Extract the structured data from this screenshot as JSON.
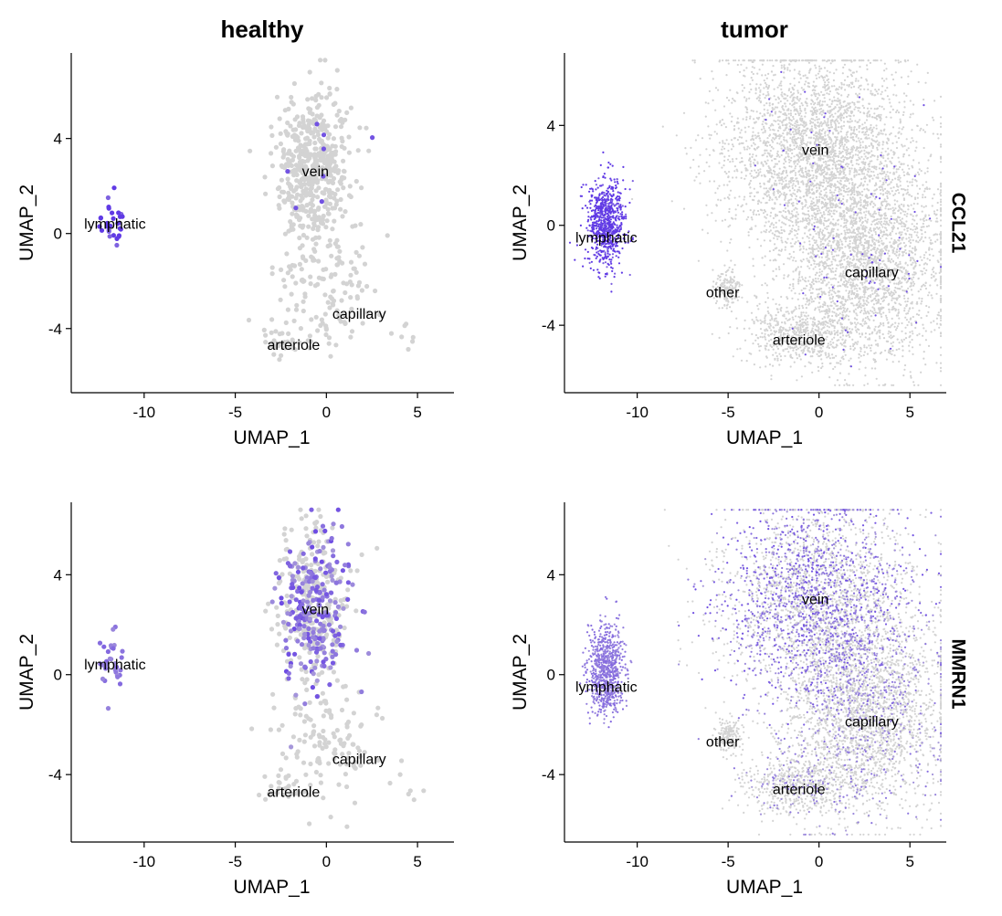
{
  "figure": {
    "column_titles": [
      "healthy",
      "tumor"
    ],
    "row_labels": [
      "CCL21",
      "MMRN1"
    ]
  },
  "colors": {
    "background": "#ffffff",
    "low_expression": "#d3d3d3",
    "high_expression": "#5a32e6",
    "axis": "#000000"
  },
  "chart_data": [
    {
      "type": "scatter",
      "panel": "healthy-CCL21",
      "column": "healthy",
      "gene": "CCL21",
      "xlabel": "UMAP_1",
      "ylabel": "UMAP_2",
      "xlim": [
        -14,
        7
      ],
      "ylim": [
        -6.7,
        7.6
      ],
      "xticks": [
        -10,
        -5,
        0,
        5
      ],
      "yticks": [
        -4,
        0,
        4
      ],
      "tick_labels_x": [
        "-10",
        "-5",
        "0",
        "5"
      ],
      "tick_labels_y": [
        "-4",
        "0",
        "4"
      ],
      "grid": false,
      "point_size": "large",
      "clusters": [
        {
          "name": "lymphatic",
          "label": [
            -11.6,
            0.4
          ],
          "center": [
            -11.7,
            0.5
          ],
          "spread": [
            0.35,
            0.6
          ],
          "count": 30,
          "expr": "high"
        },
        {
          "name": "vein",
          "label": [
            -0.6,
            2.6
          ],
          "center": [
            -0.7,
            2.8
          ],
          "spread": [
            1.0,
            1.6
          ],
          "count": 520,
          "expr": "sparse"
        },
        {
          "name": "capillary",
          "label": [
            1.8,
            -3.4
          ],
          "center": [
            0.0,
            -2.5
          ],
          "spread": [
            1.3,
            1.3
          ],
          "count": 130,
          "expr": "none"
        },
        {
          "name": "arteriole",
          "label": [
            -1.8,
            -4.7
          ],
          "center": [
            -2.5,
            -4.6
          ],
          "spread": [
            0.8,
            0.3
          ],
          "count": 30,
          "expr": "none"
        },
        {
          "name": "",
          "center": [
            4.5,
            -4.4
          ],
          "spread": [
            0.5,
            0.4
          ],
          "count": 7,
          "expr": "none"
        }
      ]
    },
    {
      "type": "scatter",
      "panel": "tumor-CCL21",
      "column": "tumor",
      "gene": "CCL21",
      "xlabel": "UMAP_1",
      "ylabel": "UMAP_2",
      "xlim": [
        -14,
        7
      ],
      "ylim": [
        -6.7,
        6.9
      ],
      "xticks": [
        -10,
        -5,
        0,
        5
      ],
      "yticks": [
        -4,
        0,
        4
      ],
      "tick_labels_x": [
        "-10",
        "-5",
        "0",
        "5"
      ],
      "tick_labels_y": [
        "-4",
        "0",
        "4"
      ],
      "grid": false,
      "point_size": "small",
      "clusters": [
        {
          "name": "lymphatic",
          "label": [
            -11.7,
            -0.5
          ],
          "center": [
            -11.7,
            0.1
          ],
          "spread": [
            0.5,
            0.9
          ],
          "count": 750,
          "expr": "high"
        },
        {
          "name": "other",
          "label": [
            -5.3,
            -2.7
          ],
          "center": [
            -5.0,
            -2.5
          ],
          "spread": [
            0.35,
            0.35
          ],
          "count": 160,
          "expr": "none"
        },
        {
          "name": "vein",
          "label": [
            -0.2,
            3.0
          ],
          "center": [
            -0.2,
            3.0
          ],
          "spread": [
            2.6,
            2.0
          ],
          "count": 3000,
          "expr": "sparse"
        },
        {
          "name": "capillary",
          "label": [
            2.9,
            -1.9
          ],
          "center": [
            2.6,
            -1.5
          ],
          "spread": [
            2.2,
            2.0
          ],
          "count": 2600,
          "expr": "sparse"
        },
        {
          "name": "arteriole",
          "label": [
            -1.1,
            -4.6
          ],
          "center": [
            -1.0,
            -4.4
          ],
          "spread": [
            1.6,
            0.6
          ],
          "count": 600,
          "expr": "none"
        }
      ]
    },
    {
      "type": "scatter",
      "panel": "healthy-MMRN1",
      "column": "healthy",
      "gene": "MMRN1",
      "xlabel": "UMAP_1",
      "ylabel": "UMAP_2",
      "xlim": [
        -14,
        7
      ],
      "ylim": [
        -6.7,
        6.9
      ],
      "xticks": [
        -10,
        -5,
        0,
        5
      ],
      "yticks": [
        -4,
        0,
        4
      ],
      "tick_labels_x": [
        "-10",
        "-5",
        "0",
        "5"
      ],
      "tick_labels_y": [
        "-4",
        "0",
        "4"
      ],
      "grid": false,
      "point_size": "large",
      "clusters": [
        {
          "name": "lymphatic",
          "label": [
            -11.6,
            0.4
          ],
          "center": [
            -11.7,
            0.5
          ],
          "spread": [
            0.35,
            0.6
          ],
          "count": 30,
          "expr": "medium"
        },
        {
          "name": "vein",
          "label": [
            -0.6,
            2.6
          ],
          "center": [
            -0.7,
            2.8
          ],
          "spread": [
            1.0,
            1.6
          ],
          "count": 520,
          "expr": "partial"
        },
        {
          "name": "capillary",
          "label": [
            1.8,
            -3.4
          ],
          "center": [
            0.0,
            -2.5
          ],
          "spread": [
            1.3,
            1.3
          ],
          "count": 130,
          "expr": "none"
        },
        {
          "name": "arteriole",
          "label": [
            -1.8,
            -4.7
          ],
          "center": [
            -2.5,
            -4.6
          ],
          "spread": [
            0.8,
            0.3
          ],
          "count": 30,
          "expr": "none"
        },
        {
          "name": "",
          "center": [
            4.5,
            -4.4
          ],
          "spread": [
            0.5,
            0.4
          ],
          "count": 7,
          "expr": "none"
        }
      ]
    },
    {
      "type": "scatter",
      "panel": "tumor-MMRN1",
      "column": "tumor",
      "gene": "MMRN1",
      "xlabel": "UMAP_1",
      "ylabel": "UMAP_2",
      "xlim": [
        -14,
        7
      ],
      "ylim": [
        -6.7,
        6.9
      ],
      "xticks": [
        -10,
        -5,
        0,
        5
      ],
      "yticks": [
        -4,
        0,
        4
      ],
      "tick_labels_x": [
        "-10",
        "-5",
        "0",
        "5"
      ],
      "tick_labels_y": [
        "-4",
        "0",
        "4"
      ],
      "grid": false,
      "point_size": "small",
      "clusters": [
        {
          "name": "lymphatic",
          "label": [
            -11.7,
            -0.5
          ],
          "center": [
            -11.7,
            0.1
          ],
          "spread": [
            0.5,
            0.9
          ],
          "count": 750,
          "expr": "medium"
        },
        {
          "name": "other",
          "label": [
            -5.3,
            -2.7
          ],
          "center": [
            -5.0,
            -2.5
          ],
          "spread": [
            0.35,
            0.35
          ],
          "count": 160,
          "expr": "none"
        },
        {
          "name": "vein",
          "label": [
            -0.2,
            3.0
          ],
          "center": [
            -0.2,
            3.0
          ],
          "spread": [
            2.6,
            2.0
          ],
          "count": 3000,
          "expr": "partial"
        },
        {
          "name": "capillary",
          "label": [
            2.9,
            -1.9
          ],
          "center": [
            2.6,
            -1.5
          ],
          "spread": [
            2.2,
            2.0
          ],
          "count": 2600,
          "expr": "light"
        },
        {
          "name": "arteriole",
          "label": [
            -1.1,
            -4.6
          ],
          "center": [
            -1.0,
            -4.4
          ],
          "spread": [
            1.6,
            0.6
          ],
          "count": 600,
          "expr": "light"
        }
      ]
    }
  ]
}
